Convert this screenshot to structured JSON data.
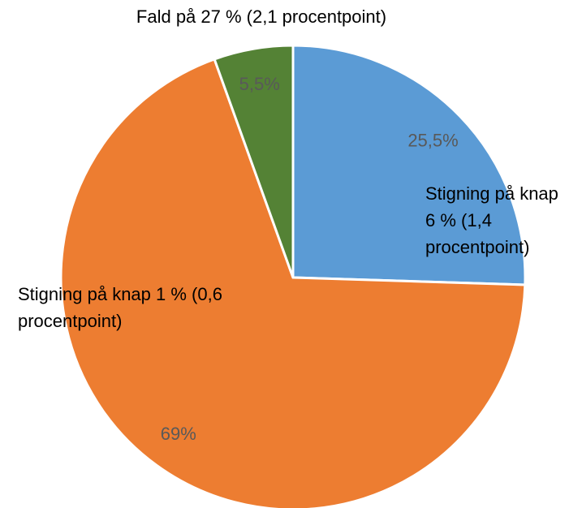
{
  "chart_data": {
    "type": "pie",
    "categories": [
      null,
      null,
      null
    ],
    "values": [
      25.5,
      69,
      5.5
    ],
    "value_labels": [
      "25,5%",
      "69%",
      "5,5%"
    ],
    "colors": [
      "#5b9bd5",
      "#ed7d31",
      "#548235"
    ],
    "annotations": [
      "Stigning på knap 6 % (1,4 procentpoint)",
      "Stigning på knap 1 % (0,6 procentpoint)",
      "Fald på 27 % (2,1 procentpoint)"
    ]
  }
}
